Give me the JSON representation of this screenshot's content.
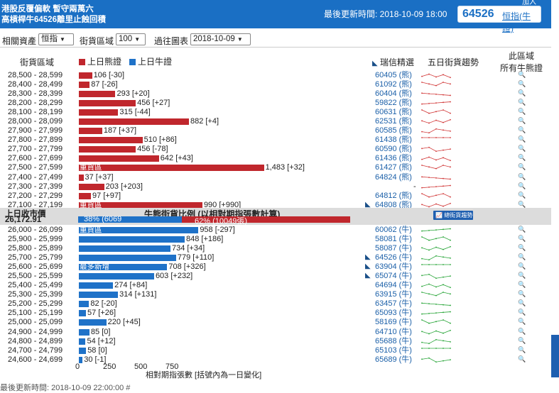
{
  "header": {
    "title_line1": "港股反覆偏軟 暫守兩萬六",
    "title_line2": "高槓桿牛64526離里止蝕回積",
    "updated_label": "最後更新時間: 2018-10-09 18:00",
    "code": "64526",
    "code_sub": "恒指(牛證)",
    "cut_text": "加入"
  },
  "controls": {
    "related_label": "相關資產",
    "related_value": "恒指",
    "range_label": "街貨區域",
    "range_value": "100",
    "history_label": "過往圖表",
    "history_value": "2018-10-09"
  },
  "columns": {
    "range": "街貨區域",
    "bear_legend": "上日熊證",
    "bull_legend": "上日牛證",
    "picks": "瑞信精選",
    "trend": "五日街貨趨勢",
    "all_line1": "此區域",
    "all_line2": "所有牛熊證"
  },
  "colors": {
    "bear": "#c0272d",
    "bull": "#1f72c8",
    "header": "#1a6fc4"
  },
  "bear_rows": [
    {
      "range": "28,500 - 28,599",
      "value": 106,
      "label": "106 [-30]",
      "code": "60405 (熊)",
      "tag": "",
      "link": false
    },
    {
      "range": "28,400 - 28,499",
      "value": 87,
      "label": "87 [-26]",
      "code": "61092 (熊)",
      "tag": "",
      "link": false
    },
    {
      "range": "28,300 - 28,399",
      "value": 293,
      "label": "293 [+20]",
      "code": "60404 (熊)",
      "tag": "",
      "link": false
    },
    {
      "range": "28,200 - 28,299",
      "value": 456,
      "label": "456 [+27]",
      "code": "59822 (熊)",
      "tag": "",
      "link": false
    },
    {
      "range": "28,100 - 28,199",
      "value": 315,
      "label": "315 [-44]",
      "code": "60631 (熊)",
      "tag": "",
      "link": false
    },
    {
      "range": "28,000 - 28,099",
      "value": 882,
      "label": "882 [+4]",
      "code": "62531 (熊)",
      "tag": "",
      "link": false
    },
    {
      "range": "27,900 - 27,999",
      "value": 187,
      "label": "187 [+37]",
      "code": "60585 (熊)",
      "tag": "",
      "link": false
    },
    {
      "range": "27,800 - 27,899",
      "value": 510,
      "label": "510 [+86]",
      "code": "61438 (熊)",
      "tag": "",
      "link": false
    },
    {
      "range": "27,700 - 27,799",
      "value": 456,
      "label": "456 [-78]",
      "code": "60590 (熊)",
      "tag": "",
      "link": false
    },
    {
      "range": "27,600 - 27,699",
      "value": 642,
      "label": "642 [+43]",
      "code": "61436 (熊)",
      "tag": "",
      "link": false
    },
    {
      "range": "27,500 - 27,599",
      "value": 1483,
      "label": "1,483 [+32]",
      "code": "61427 (熊)",
      "tag": "重貨區",
      "link": false
    },
    {
      "range": "27,400 - 27,499",
      "value": 37,
      "label": "37 [+37]",
      "code": "64824 (熊)",
      "tag": "",
      "link": false
    },
    {
      "range": "27,300 - 27,399",
      "value": 203,
      "label": "203 [+203]",
      "code": "-",
      "tag": "",
      "link": false
    },
    {
      "range": "27,200 - 27,299",
      "value": 97,
      "label": "97 [+97]",
      "code": "64812 (熊)",
      "tag": "",
      "link": false
    },
    {
      "range": "27,100 - 27,199",
      "value": 990,
      "label": "990 [+990]",
      "code": "64808 (熊)",
      "tag": "重貨區",
      "link": true
    }
  ],
  "middle": {
    "close_label": "上日收市價",
    "close_value": "26,172.91",
    "ratio_title": "牛熊街貨比例 (以相對期指張數計算)",
    "bull_pct": 38,
    "bull_text": "38% (6069",
    "bear_text": "62% (10049張)",
    "trend_button": "總街貨趨勢"
  },
  "bull_rows": [
    {
      "range": "26,000 - 26,099",
      "value": 958,
      "label": "958 [-297]",
      "code": "60062 (牛)",
      "tag": "重貨區",
      "link": false
    },
    {
      "range": "25,900 - 25,999",
      "value": 848,
      "label": "848 [+186]",
      "code": "58081 (牛)",
      "tag": "",
      "link": false
    },
    {
      "range": "25,800 - 25,899",
      "value": 734,
      "label": "734 [+34]",
      "code": "58087 (牛)",
      "tag": "",
      "link": false
    },
    {
      "range": "25,700 - 25,799",
      "value": 779,
      "label": "779 [+110]",
      "code": "64526 (牛)",
      "tag": "",
      "link": true
    },
    {
      "range": "25,600 - 25,699",
      "value": 708,
      "label": "708 [+326]",
      "code": "63904 (牛)",
      "tag": "最多新增",
      "link": true
    },
    {
      "range": "25,500 - 25,599",
      "value": 603,
      "label": "603 [+232]",
      "code": "65074 (牛)",
      "tag": "",
      "link": true
    },
    {
      "range": "25,400 - 25,499",
      "value": 274,
      "label": "274 [+84]",
      "code": "64694 (牛)",
      "tag": "",
      "link": false
    },
    {
      "range": "25,300 - 25,399",
      "value": 314,
      "label": "314 [+131]",
      "code": "63915 (牛)",
      "tag": "",
      "link": false
    },
    {
      "range": "25,200 - 25,299",
      "value": 82,
      "label": "82 [-20]",
      "code": "63457 (牛)",
      "tag": "",
      "link": false
    },
    {
      "range": "25,100 - 25,199",
      "value": 57,
      "label": "57 [+26]",
      "code": "65093 (牛)",
      "tag": "",
      "link": false
    },
    {
      "range": "25,000 - 25,099",
      "value": 220,
      "label": "220 [+45]",
      "code": "58169 (牛)",
      "tag": "",
      "link": false
    },
    {
      "range": "24,900 - 24,999",
      "value": 85,
      "label": "85 [0]",
      "code": "64710 (牛)",
      "tag": "",
      "link": false
    },
    {
      "range": "24,800 - 24,899",
      "value": 54,
      "label": "54 [+12]",
      "code": "65688 (牛)",
      "tag": "",
      "link": false
    },
    {
      "range": "24,700 - 24,799",
      "value": 58,
      "label": "58 [0]",
      "code": "65103 (牛)",
      "tag": "",
      "link": false
    },
    {
      "range": "24,600 - 24,699",
      "value": 30,
      "label": "30 [-1]",
      "code": "65689 (牛)",
      "tag": "",
      "link": false
    }
  ],
  "axis": {
    "ticks": [
      "0",
      "250",
      "500",
      "750"
    ],
    "caption": "相對期指張數 [括號內為一日變化]"
  },
  "footer_cut": "最後更新時間: 2018-10-09 22:00:00 #"
}
